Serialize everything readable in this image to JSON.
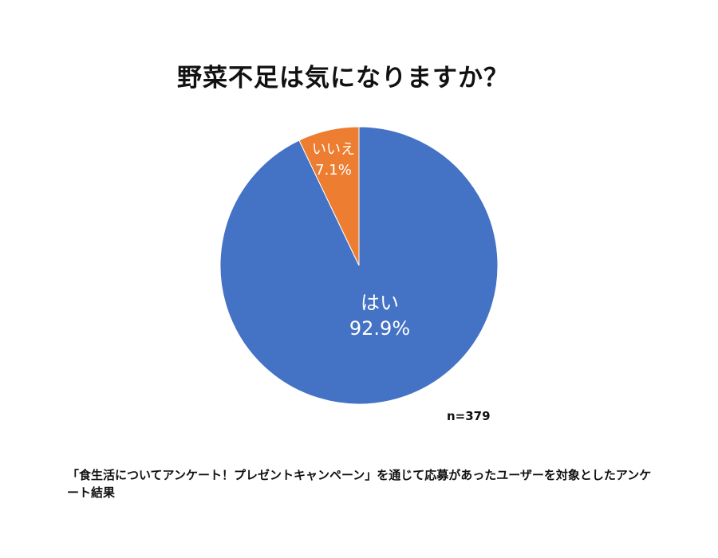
{
  "chart_data": {
    "type": "pie",
    "title": "野菜不足は気になりますか？",
    "slices": [
      {
        "label": "はい",
        "value": 92.9,
        "value_label": "92.9%",
        "color": "#4472C4"
      },
      {
        "label": "いいえ",
        "value": 7.1,
        "value_label": "7.1%",
        "color": "#ED7D31"
      }
    ],
    "start": "12 o'clock",
    "direction": "clockwise",
    "legend": "none",
    "note": "n=379"
  },
  "footnote": "「食生活についてアンケート！プレゼントキャンペーン」を通じて応募があったユーザーを対象としたアンケート結果"
}
